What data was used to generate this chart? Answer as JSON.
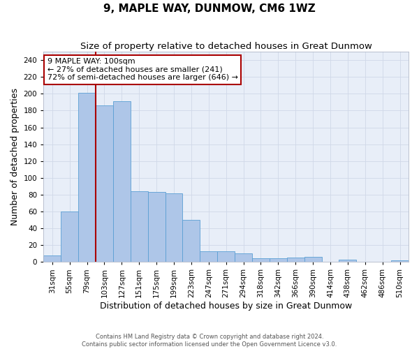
{
  "title": "9, MAPLE WAY, DUNMOW, CM6 1WZ",
  "subtitle": "Size of property relative to detached houses in Great Dunmow",
  "xlabel": "Distribution of detached houses by size in Great Dunmow",
  "ylabel": "Number of detached properties",
  "categories": [
    "31sqm",
    "55sqm",
    "79sqm",
    "103sqm",
    "127sqm",
    "151sqm",
    "175sqm",
    "199sqm",
    "223sqm",
    "247sqm",
    "271sqm",
    "294sqm",
    "318sqm",
    "342sqm",
    "366sqm",
    "390sqm",
    "414sqm",
    "438sqm",
    "462sqm",
    "486sqm",
    "510sqm"
  ],
  "values": [
    8,
    60,
    201,
    186,
    191,
    84,
    83,
    82,
    50,
    13,
    13,
    10,
    4,
    4,
    5,
    6,
    0,
    3,
    0,
    0,
    2
  ],
  "bar_color": "#aec6e8",
  "bar_edge_color": "#5a9fd4",
  "vline_x_index": 3,
  "vline_color": "#aa0000",
  "annotation_text": "9 MAPLE WAY: 100sqm\n← 27% of detached houses are smaller (241)\n72% of semi-detached houses are larger (646) →",
  "annotation_box_color": "#ffffff",
  "annotation_box_edge_color": "#aa0000",
  "ylim": [
    0,
    250
  ],
  "yticks": [
    0,
    20,
    40,
    60,
    80,
    100,
    120,
    140,
    160,
    180,
    200,
    220,
    240
  ],
  "grid_color": "#d0d8e8",
  "background_color": "#e8eef8",
  "footer_line1": "Contains HM Land Registry data © Crown copyright and database right 2024.",
  "footer_line2": "Contains public sector information licensed under the Open Government Licence v3.0.",
  "title_fontsize": 11,
  "subtitle_fontsize": 9.5,
  "xlabel_fontsize": 9,
  "ylabel_fontsize": 9,
  "tick_fontsize": 7.5,
  "annotation_fontsize": 8
}
